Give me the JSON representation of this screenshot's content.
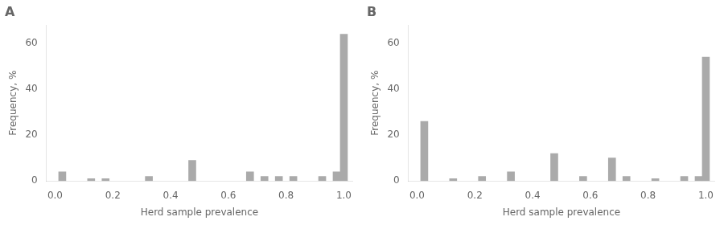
{
  "chart_data": [
    {
      "type": "bar",
      "title": "A",
      "x": [
        0.025,
        0.125,
        0.175,
        0.325,
        0.475,
        0.675,
        0.725,
        0.775,
        0.825,
        0.925,
        0.975,
        1.0
      ],
      "values": [
        4.0,
        1.0,
        1.0,
        2.0,
        9.0,
        4.0,
        2.0,
        2.0,
        2.0,
        2.0,
        4.0,
        64.0
      ],
      "color": "#aaaaaa",
      "xlabel": "Herd sample prevalence",
      "ylabel": "Frequency, %",
      "xlim": [
        -0.03,
        1.03
      ],
      "ylim": [
        0,
        68
      ],
      "xticks": [
        {
          "value": 0,
          "label": "0.0"
        },
        0.2,
        0.4,
        0.6,
        0.8,
        {
          "value": 1.0,
          "label": "1.0"
        }
      ],
      "yticks": [
        0,
        20,
        40,
        60
      ],
      "grid": false
    },
    {
      "type": "bar",
      "title": "B",
      "x": [
        0.025,
        0.125,
        0.225,
        0.325,
        0.475,
        0.575,
        0.675,
        0.725,
        0.825,
        0.925,
        0.975,
        1.0
      ],
      "values": [
        26.0,
        1.0,
        2.0,
        4.0,
        12.0,
        2.0,
        10.0,
        2.0,
        1.0,
        2.0,
        2.0,
        54.0
      ],
      "color": "#aaaaaa",
      "xlabel": "Herd sample prevalence",
      "ylabel": "Frequency, %",
      "xlim": [
        -0.03,
        1.03
      ],
      "ylim": [
        0,
        68
      ],
      "xticks": [
        {
          "value": 0,
          "label": "0.0"
        },
        0.2,
        0.4,
        0.6,
        0.8,
        {
          "value": 1.0,
          "label": "1.0"
        }
      ],
      "yticks": [
        0,
        20,
        40,
        60
      ],
      "grid": false
    }
  ]
}
